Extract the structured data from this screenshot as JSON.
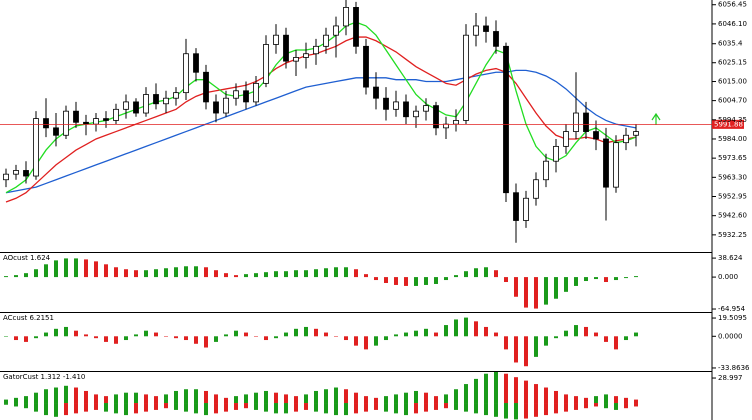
{
  "chart_data": [
    {
      "type": "candlestick",
      "up_color": "#ffffff",
      "down_color": "#000000",
      "outline_color": "#000000",
      "open": [
        5962,
        5965,
        5967,
        5964,
        5995,
        5990,
        5986,
        5999,
        5993,
        5992,
        5995,
        5994,
        6000,
        6004,
        5998,
        6008,
        6003,
        6006,
        6009,
        6030,
        6020,
        6004,
        5998,
        6006,
        6010,
        6004,
        6014,
        6035,
        6040,
        6026,
        6028,
        6030,
        6034,
        6040,
        6045,
        6055,
        6034,
        6012,
        6006,
        6000,
        6004,
        5996,
        5999,
        6002,
        5990,
        5992,
        5994,
        6040,
        6045,
        6042,
        6034,
        5955,
        5940,
        5952,
        5962,
        5972,
        5980,
        5988,
        5998,
        5988,
        5984,
        5958,
        5982,
        5986
      ],
      "high": [
        5968,
        5970,
        5972,
        5999,
        6006,
        5998,
        6002,
        6004,
        5997,
        5998,
        5999,
        6003,
        6008,
        6006,
        6012,
        6014,
        6010,
        6012,
        6038,
        6033,
        6024,
        6008,
        6010,
        6014,
        6015,
        6018,
        6040,
        6046,
        6044,
        6032,
        6036,
        6038,
        6044,
        6050,
        6060,
        6058,
        6038,
        6020,
        6012,
        6010,
        6008,
        6002,
        6006,
        6004,
        5996,
        6000,
        6046,
        6052,
        6050,
        6048,
        6036,
        5960,
        5956,
        5966,
        5976,
        5984,
        5992,
        6020,
        6004,
        5994,
        5990,
        5986,
        5990,
        5992
      ],
      "low": [
        5958,
        5962,
        5960,
        5962,
        5985,
        5980,
        5984,
        5990,
        5986,
        5988,
        5990,
        5992,
        5995,
        5996,
        5996,
        6000,
        5998,
        6002,
        6005,
        6015,
        6000,
        5993,
        5996,
        6002,
        6000,
        6002,
        6012,
        6030,
        6022,
        6018,
        6022,
        6024,
        6030,
        6028,
        6040,
        6030,
        6008,
        6000,
        5994,
        5996,
        5992,
        5990,
        5994,
        5986,
        5984,
        5988,
        5992,
        6034,
        6036,
        6030,
        5950,
        5928,
        5936,
        5948,
        5958,
        5966,
        5976,
        5984,
        5984,
        5978,
        5940,
        5955,
        5978,
        5980
      ],
      "close": [
        5965,
        5967,
        5964,
        5995,
        5990,
        5986,
        5999,
        5993,
        5992,
        5995,
        5994,
        6000,
        6004,
        5998,
        6008,
        6003,
        6006,
        6009,
        6030,
        6020,
        6004,
        5998,
        6006,
        6010,
        6004,
        6014,
        6035,
        6040,
        6026,
        6028,
        6030,
        6034,
        6040,
        6045,
        6055,
        6034,
        6012,
        6006,
        6000,
        6004,
        5996,
        5999,
        6002,
        5990,
        5992,
        5994,
        6040,
        6045,
        6042,
        6034,
        5955,
        5940,
        5952,
        5962,
        5972,
        5980,
        5988,
        5998,
        5988,
        5984,
        5958,
        5982,
        5986,
        5988
      ],
      "series": [
        {
          "color": "#1f5fd1",
          "values": [
            5955,
            5956,
            5957,
            5958,
            5960,
            5962,
            5964,
            5966,
            5968,
            5970,
            5972,
            5974,
            5976,
            5978,
            5980,
            5982,
            5984,
            5986,
            5988,
            5990,
            5992,
            5994,
            5996,
            5998,
            6000,
            6002,
            6004,
            6006,
            6008,
            6010,
            6012,
            6013,
            6014,
            6015,
            6016,
            6017,
            6017,
            6017,
            6017,
            6016,
            6016,
            6016,
            6015,
            6015,
            6015,
            6016,
            6017,
            6018,
            6019,
            6020,
            6020,
            6021,
            6021,
            6020,
            6018,
            6015,
            6011,
            6006,
            6001,
            5997,
            5994,
            5992,
            5991,
            5990
          ]
        },
        {
          "color": "#e02020",
          "values": [
            5950,
            5952,
            5955,
            5960,
            5965,
            5970,
            5974,
            5978,
            5981,
            5984,
            5986,
            5988,
            5990,
            5992,
            5994,
            5996,
            5998,
            6000,
            6004,
            6007,
            6009,
            6010,
            6011,
            6012,
            6013,
            6015,
            6018,
            6022,
            6025,
            6027,
            6029,
            6030,
            6032,
            6034,
            6037,
            6039,
            6039,
            6037,
            6034,
            6031,
            6027,
            6023,
            6020,
            6017,
            6014,
            6013,
            6016,
            6019,
            6021,
            6022,
            6020,
            6014,
            6006,
            5998,
            5991,
            5986,
            5984,
            5984,
            5985,
            5984,
            5982,
            5983,
            5984,
            5985
          ]
        },
        {
          "color": "#22dd22",
          "values": [
            5955,
            5958,
            5962,
            5970,
            5978,
            5984,
            5988,
            5991,
            5992,
            5993,
            5994,
            5996,
            5998,
            6000,
            6002,
            6004,
            6005,
            6007,
            6012,
            6016,
            6016,
            6012,
            6008,
            6007,
            6008,
            6010,
            6016,
            6024,
            6030,
            6032,
            6032,
            6033,
            6036,
            6040,
            6045,
            6047,
            6045,
            6040,
            6032,
            6024,
            6016,
            6008,
            6003,
            6000,
            5997,
            5996,
            6004,
            6014,
            6024,
            6032,
            6030,
            6010,
            5992,
            5980,
            5974,
            5972,
            5975,
            5982,
            5988,
            5990,
            5986,
            5982,
            5983,
            5985
          ]
        }
      ],
      "bid": 5991.88,
      "bid_color": "#e02020",
      "ylim": [
        5923,
        6059
      ],
      "yticks": [
        6056.45,
        {
          "value": 6046.1,
          "label": "6046.10"
        },
        6035.4,
        6025.15,
        {
          "value": 6015,
          "label": "6015.00"
        },
        {
          "value": 6004.7,
          "label": "6004.70"
        },
        5994.35,
        {
          "value": 5984,
          "label": "5984.00"
        },
        5973.65,
        {
          "value": 5963.3,
          "label": "5963.30"
        },
        5952.95,
        {
          "value": 5942.6,
          "label": "5942.60"
        },
        5932.25
      ]
    },
    {
      "type": "bar",
      "title": "AOcust 1.624",
      "up_color": "#1a9a1a",
      "down_color": "#e02020",
      "values": [
        2,
        4,
        8,
        16,
        26,
        34,
        38,
        38,
        36,
        32,
        26,
        20,
        16,
        14,
        14,
        16,
        18,
        20,
        22,
        22,
        20,
        14,
        8,
        4,
        6,
        8,
        10,
        12,
        12,
        14,
        14,
        16,
        18,
        20,
        20,
        16,
        6,
        -6,
        -12,
        -16,
        -18,
        -18,
        -16,
        -14,
        -6,
        4,
        12,
        18,
        20,
        14,
        -10,
        -40,
        -62,
        -64,
        -56,
        -44,
        -30,
        -18,
        -8,
        -4,
        -10,
        -6,
        -2,
        2
      ],
      "ylim": [
        -71,
        49
      ],
      "yticks": [
        38.624,
        {
          "value": 0,
          "label": "0.000"
        },
        -64.954
      ]
    },
    {
      "type": "bar",
      "title": "ACcust 6.2151",
      "up_color": "#1a9a1a",
      "down_color": "#e02020",
      "values": [
        0,
        -4,
        -6,
        -2,
        4,
        8,
        10,
        6,
        2,
        -2,
        -6,
        -8,
        -4,
        2,
        6,
        4,
        0,
        -2,
        -4,
        -8,
        -12,
        -6,
        2,
        6,
        4,
        0,
        -4,
        -2,
        4,
        8,
        10,
        8,
        4,
        0,
        -4,
        -10,
        -14,
        -10,
        -4,
        2,
        4,
        6,
        8,
        4,
        12,
        18,
        20,
        16,
        10,
        4,
        -14,
        -28,
        -32,
        -22,
        -10,
        -2,
        6,
        12,
        10,
        4,
        -6,
        -14,
        -4,
        4
      ],
      "ylim": [
        -37.1,
        24.9
      ],
      "yticks": [
        19.5095,
        {
          "value": 0,
          "label": "0.0000"
        },
        -33.8636
      ]
    },
    {
      "type": "gator",
      "title": "GatorCust 1.312 -1.410",
      "up_color": "#1a9a1a",
      "down_color": "#e02020",
      "series": [
        {
          "values": [
            4,
            6,
            8,
            12,
            16,
            18,
            20,
            18,
            14,
            10,
            8,
            10,
            12,
            12,
            10,
            8,
            10,
            14,
            16,
            16,
            14,
            10,
            6,
            8,
            10,
            12,
            14,
            12,
            10,
            8,
            10,
            14,
            16,
            18,
            16,
            12,
            8,
            6,
            8,
            10,
            12,
            14,
            12,
            8,
            10,
            16,
            22,
            28,
            34,
            36,
            34,
            30,
            26,
            22,
            18,
            14,
            10,
            8,
            6,
            8,
            10,
            8,
            6,
            4
          ]
        },
        {
          "values": [
            -2,
            -4,
            -6,
            -10,
            -14,
            -16,
            -14,
            -12,
            -10,
            -8,
            -10,
            -12,
            -14,
            -12,
            -10,
            -8,
            -6,
            -8,
            -10,
            -12,
            -14,
            -12,
            -10,
            -8,
            -6,
            -8,
            -10,
            -12,
            -12,
            -10,
            -8,
            -10,
            -12,
            -14,
            -14,
            -12,
            -10,
            -8,
            -10,
            -12,
            -14,
            -12,
            -10,
            -8,
            -6,
            -8,
            -10,
            -12,
            -14,
            -16,
            -18,
            -19,
            -18,
            -16,
            -14,
            -12,
            -10,
            -8,
            -6,
            -4,
            -6,
            -8,
            -6,
            -4
          ]
        }
      ],
      "ylim": [
        -19.7,
        36
      ],
      "yticks": [
        28.997
      ]
    }
  ]
}
